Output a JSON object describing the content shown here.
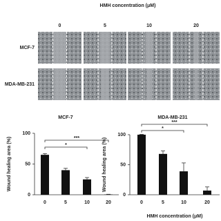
{
  "panel": {
    "title": "HMH concentration (μM)",
    "columns": [
      "0",
      "5",
      "10",
      "20"
    ],
    "rows": [
      "MCF-7",
      "MDA-MB-231"
    ]
  },
  "chart_data": [
    {
      "type": "bar",
      "title": "MCF-7",
      "y_label": "Wound healing area (%)",
      "categories": [
        "0",
        "5",
        "10",
        "20"
      ],
      "values": [
        65,
        40,
        25,
        0.5
      ],
      "errors": [
        2,
        3,
        3,
        0.3
      ],
      "color": "#111111",
      "ylim": [
        0,
        100
      ],
      "yticks": [
        0,
        50,
        100
      ],
      "annotations": [
        "***",
        "*"
      ]
    },
    {
      "type": "bar",
      "title": "MDA-MB-231",
      "y_label": "Wound healing area (%)",
      "x_label": "HMH concentration (μM)",
      "categories": [
        "0",
        "5",
        "10",
        "20"
      ],
      "values": [
        100,
        68,
        39,
        7
      ],
      "errors": [
        0.5,
        5,
        14,
        6
      ],
      "color": "#111111",
      "ylim": [
        0,
        100
      ],
      "yticks": [
        0,
        50,
        100
      ],
      "annotations": [
        "***",
        "*"
      ]
    }
  ]
}
